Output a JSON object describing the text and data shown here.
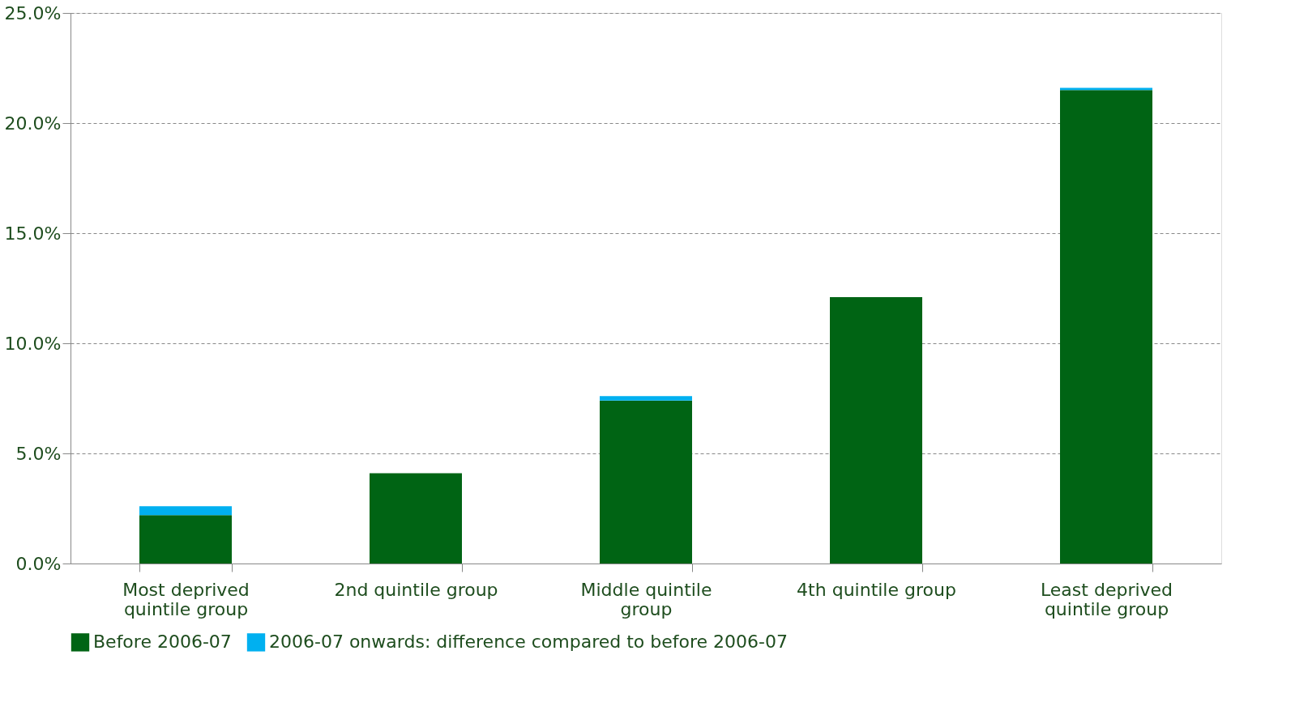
{
  "chart_data": {
    "type": "bar",
    "stacked": true,
    "categories": [
      "Most deprived quintile group",
      "2nd quintile group",
      "Middle quintile group",
      "4th quintile group",
      "Least deprived quintile group"
    ],
    "series": [
      {
        "name": "Before 2006-07",
        "color": "#006414",
        "values": [
          2.2,
          4.1,
          7.4,
          12.1,
          21.5
        ]
      },
      {
        "name": "2006-07 onwards: difference compared to before 2006-07",
        "color": "#00b0f0",
        "values": [
          0.4,
          0,
          0.2,
          0,
          0.1
        ]
      }
    ],
    "ylim": [
      0,
      25
    ],
    "yticks": [
      {
        "value": 0,
        "label": "0.0%"
      },
      {
        "value": 5,
        "label": "5.0%"
      },
      {
        "value": 10,
        "label": "10.0%"
      },
      {
        "value": 15,
        "label": "15.0%"
      },
      {
        "value": 20,
        "label": "20.0%"
      },
      {
        "value": 25,
        "label": "25.0%"
      }
    ],
    "grid": "y",
    "legend": "bottom"
  }
}
